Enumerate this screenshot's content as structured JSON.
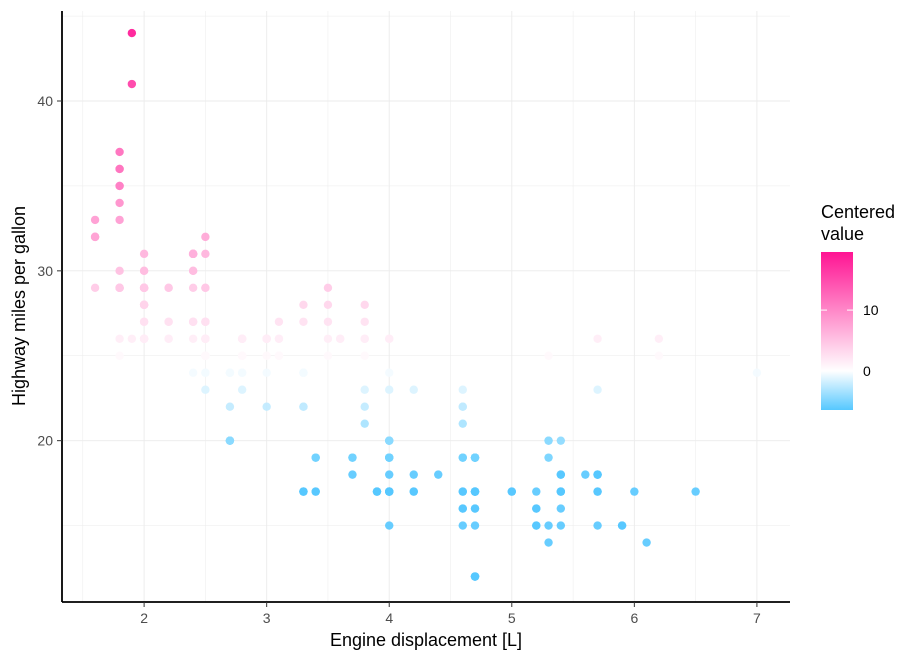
{
  "chart_data": {
    "type": "scatter",
    "xlabel": "Engine displacement [L]",
    "ylabel": "Highway miles per gallon",
    "xlim": [
      1.33,
      7.27
    ],
    "ylim": [
      10.5,
      45.3
    ],
    "x_ticks": [
      2,
      3,
      4,
      5,
      6,
      7
    ],
    "y_ticks": [
      20,
      30,
      40
    ],
    "grid": "major, light grey",
    "legend": {
      "title_lines": [
        "Centered",
        "value"
      ],
      "position": "right",
      "ticks": [
        10,
        0
      ],
      "range": [
        -6.44,
        19.56
      ],
      "colors": {
        "low": "#56c8ff",
        "mid": "#ffffff",
        "high": "#ff1493"
      }
    },
    "center": 24.44,
    "points": [
      [
        1.8,
        29
      ],
      [
        1.8,
        29
      ],
      [
        2,
        31
      ],
      [
        2,
        30
      ],
      [
        2.8,
        26
      ],
      [
        2.8,
        26
      ],
      [
        3.1,
        27
      ],
      [
        1.8,
        26
      ],
      [
        1.8,
        25
      ],
      [
        2,
        28
      ],
      [
        2,
        27
      ],
      [
        2.8,
        25
      ],
      [
        2.8,
        25
      ],
      [
        3.1,
        25
      ],
      [
        3.1,
        25
      ],
      [
        2.8,
        24
      ],
      [
        3.1,
        25
      ],
      [
        4.2,
        23
      ],
      [
        5.3,
        20
      ],
      [
        5.3,
        15
      ],
      [
        5.3,
        20
      ],
      [
        5.7,
        17
      ],
      [
        6,
        17
      ],
      [
        5.7,
        26
      ],
      [
        5.7,
        23
      ],
      [
        6.2,
        26
      ],
      [
        6.2,
        25
      ],
      [
        7,
        24
      ],
      [
        5.3,
        19
      ],
      [
        5.3,
        14
      ],
      [
        5.7,
        15
      ],
      [
        6.5,
        17
      ],
      [
        2.4,
        27
      ],
      [
        2.4,
        30
      ],
      [
        3.1,
        26
      ],
      [
        3.5,
        29
      ],
      [
        3.6,
        26
      ],
      [
        2.4,
        24
      ],
      [
        3,
        24
      ],
      [
        3.3,
        22
      ],
      [
        3.3,
        22
      ],
      [
        3.3,
        24
      ],
      [
        3.3,
        24
      ],
      [
        3.3,
        24
      ],
      [
        3.3,
        17
      ],
      [
        3.8,
        22
      ],
      [
        3.8,
        21
      ],
      [
        3.8,
        23
      ],
      [
        4,
        23
      ],
      [
        3.7,
        19
      ],
      [
        3.7,
        18
      ],
      [
        3.9,
        17
      ],
      [
        3.9,
        17
      ],
      [
        4.7,
        19
      ],
      [
        4.7,
        19
      ],
      [
        4.7,
        12
      ],
      [
        5.2,
        17
      ],
      [
        5.2,
        15
      ],
      [
        3.9,
        17
      ],
      [
        4.7,
        17
      ],
      [
        4.7,
        12
      ],
      [
        4.7,
        17
      ],
      [
        5.2,
        16
      ],
      [
        5.7,
        18
      ],
      [
        5.9,
        15
      ],
      [
        4.7,
        16
      ],
      [
        4.7,
        12
      ],
      [
        4.7,
        17
      ],
      [
        4.7,
        17
      ],
      [
        4.7,
        16
      ],
      [
        4.7,
        12
      ],
      [
        5.2,
        15
      ],
      [
        5.2,
        16
      ],
      [
        5.7,
        17
      ],
      [
        5.9,
        15
      ],
      [
        4.6,
        17
      ],
      [
        5.4,
        17
      ],
      [
        5.4,
        18
      ],
      [
        4,
        17
      ],
      [
        4,
        19
      ],
      [
        4,
        17
      ],
      [
        4,
        19
      ],
      [
        4.6,
        19
      ],
      [
        5,
        17
      ],
      [
        4.2,
        17
      ],
      [
        4.2,
        17
      ],
      [
        4.6,
        16
      ],
      [
        4.6,
        16
      ],
      [
        4.6,
        17
      ],
      [
        5.4,
        15
      ],
      [
        5.4,
        17
      ],
      [
        3.8,
        26
      ],
      [
        3.8,
        25
      ],
      [
        4,
        26
      ],
      [
        4,
        24
      ],
      [
        4.6,
        21
      ],
      [
        4.6,
        22
      ],
      [
        4.6,
        23
      ],
      [
        4.6,
        22
      ],
      [
        5.4,
        20
      ],
      [
        1.6,
        33
      ],
      [
        1.6,
        32
      ],
      [
        1.6,
        32
      ],
      [
        1.6,
        29
      ],
      [
        1.6,
        32
      ],
      [
        1.8,
        34
      ],
      [
        1.8,
        36
      ],
      [
        1.8,
        36
      ],
      [
        2,
        29
      ],
      [
        2.4,
        26
      ],
      [
        2.4,
        27
      ],
      [
        2.4,
        30
      ],
      [
        2.4,
        31
      ],
      [
        2.5,
        26
      ],
      [
        2.5,
        26
      ],
      [
        3.3,
        28
      ],
      [
        2,
        26
      ],
      [
        2,
        29
      ],
      [
        2,
        28
      ],
      [
        2,
        27
      ],
      [
        2.7,
        24
      ],
      [
        2.7,
        24
      ],
      [
        2.7,
        24
      ],
      [
        3,
        22
      ],
      [
        3.7,
        19
      ],
      [
        4,
        20
      ],
      [
        4.7,
        17
      ],
      [
        4.7,
        12
      ],
      [
        4.7,
        19
      ],
      [
        5.7,
        18
      ],
      [
        6.1,
        14
      ],
      [
        4,
        15
      ],
      [
        4.2,
        18
      ],
      [
        4.4,
        18
      ],
      [
        4.6,
        15
      ],
      [
        5.4,
        17
      ],
      [
        5.4,
        16
      ],
      [
        5.4,
        18
      ],
      [
        4,
        17
      ],
      [
        4,
        19
      ],
      [
        4.6,
        19
      ],
      [
        5,
        17
      ],
      [
        2.4,
        29
      ],
      [
        2.4,
        27
      ],
      [
        2.5,
        31
      ],
      [
        2.5,
        32
      ],
      [
        3.5,
        27
      ],
      [
        3.5,
        26
      ],
      [
        3,
        26
      ],
      [
        3,
        25
      ],
      [
        3.5,
        25
      ],
      [
        3.3,
        17
      ],
      [
        3.3,
        17
      ],
      [
        4,
        20
      ],
      [
        5.6,
        18
      ],
      [
        3.1,
        26
      ],
      [
        3.8,
        26
      ],
      [
        3.8,
        27
      ],
      [
        3.8,
        28
      ],
      [
        5.3,
        25
      ],
      [
        2.5,
        25
      ],
      [
        2.5,
        24
      ],
      [
        2.5,
        27
      ],
      [
        2.5,
        25
      ],
      [
        2.5,
        26
      ],
      [
        2.5,
        23
      ],
      [
        2.2,
        26
      ],
      [
        2.2,
        26
      ],
      [
        2.5,
        26
      ],
      [
        2.5,
        26
      ],
      [
        2.5,
        25
      ],
      [
        2.5,
        27
      ],
      [
        2.5,
        25
      ],
      [
        2.5,
        27
      ],
      [
        2.7,
        20
      ],
      [
        2.7,
        20
      ],
      [
        3.4,
        19
      ],
      [
        3.4,
        17
      ],
      [
        4,
        20
      ],
      [
        4.7,
        17
      ],
      [
        2.2,
        29
      ],
      [
        2.2,
        27
      ],
      [
        2.4,
        31
      ],
      [
        2.4,
        31
      ],
      [
        3,
        26
      ],
      [
        3,
        26
      ],
      [
        3.5,
        28
      ],
      [
        2.2,
        27
      ],
      [
        2.2,
        29
      ],
      [
        2.4,
        31
      ],
      [
        2.4,
        31
      ],
      [
        3,
        26
      ],
      [
        3,
        26
      ],
      [
        3.3,
        27
      ],
      [
        1.8,
        30
      ],
      [
        1.8,
        33
      ],
      [
        1.8,
        35
      ],
      [
        1.8,
        37
      ],
      [
        1.8,
        35
      ],
      [
        4.7,
        15
      ],
      [
        5.7,
        18
      ],
      [
        2.7,
        20
      ],
      [
        2.7,
        20
      ],
      [
        2.7,
        22
      ],
      [
        3.4,
        17
      ],
      [
        3.4,
        19
      ],
      [
        4,
        18
      ],
      [
        4,
        20
      ],
      [
        4,
        17
      ],
      [
        4,
        17
      ],
      [
        4,
        19
      ],
      [
        4,
        26
      ],
      [
        4.7,
        19
      ],
      [
        4.7,
        19
      ],
      [
        2,
        29
      ],
      [
        2,
        26
      ],
      [
        2,
        29
      ],
      [
        2,
        29
      ],
      [
        2,
        28
      ],
      [
        2,
        29
      ],
      [
        1.9,
        26
      ],
      [
        2,
        26
      ],
      [
        2,
        29
      ],
      [
        2,
        28
      ],
      [
        2.5,
        24
      ],
      [
        2.5,
        25
      ],
      [
        2,
        29
      ],
      [
        2.5,
        29
      ],
      [
        2.5,
        25
      ],
      [
        2.8,
        24
      ],
      [
        1.9,
        44
      ],
      [
        2,
        29
      ],
      [
        2,
        26
      ],
      [
        2,
        29
      ],
      [
        2,
        29
      ],
      [
        2.8,
        23
      ],
      [
        1.8,
        29
      ],
      [
        1.8,
        29
      ],
      [
        2,
        28
      ],
      [
        2,
        29
      ],
      [
        2.8,
        26
      ],
      [
        2.8,
        26
      ],
      [
        3.6,
        26
      ],
      [
        1.9,
        41
      ],
      [
        2,
        28
      ],
      [
        2,
        26
      ],
      [
        2.5,
        29
      ],
      [
        1.8,
        29
      ],
      [
        2.4,
        31
      ],
      [
        2,
        30
      ]
    ]
  }
}
